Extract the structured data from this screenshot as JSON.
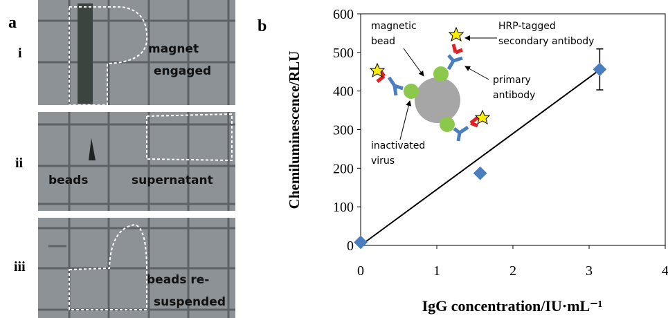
{
  "photo_panel": {
    "label": "a",
    "rows": [
      {
        "label": "i",
        "texts": [
          "magnet",
          "engaged"
        ]
      },
      {
        "label": "ii",
        "texts": [
          "beads",
          "supernatant"
        ]
      },
      {
        "label": "iii",
        "texts": [
          "beads re-",
          "suspended"
        ]
      }
    ]
  },
  "chart_data": {
    "type": "scatter",
    "panel_label": "b",
    "xlabel": "IgG concentration/IU·mL⁻¹",
    "ylabel": "Chemiluminescence/RLU",
    "x": [
      0,
      1.57,
      3.14
    ],
    "values": [
      8,
      187,
      456
    ],
    "errors": [
      null,
      null,
      53
    ],
    "color": "#4a7ebf",
    "fit": {
      "x": [
        0,
        3.14
      ],
      "values": [
        0,
        455
      ],
      "color": "#000000"
    },
    "xlim": [
      0,
      4
    ],
    "xticks": [
      0,
      1,
      2,
      3,
      4
    ],
    "ylim": [
      0,
      600
    ],
    "yticks": [
      0,
      100,
      200,
      300,
      400,
      500,
      600
    ],
    "annotations": [
      {
        "lines": [
          "magnetic",
          "bead"
        ]
      },
      {
        "lines": [
          "HRP-tagged",
          "secondary antibody"
        ]
      },
      {
        "lines": [
          "primary",
          "antibody"
        ]
      },
      {
        "lines": [
          "inactivated",
          "virus"
        ]
      }
    ]
  }
}
